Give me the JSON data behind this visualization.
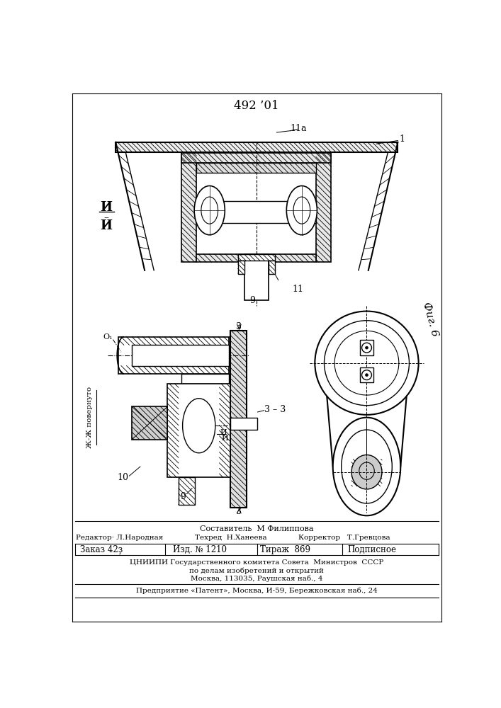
{
  "patent_number": "492 ’01",
  "fig_label": "Фиг. 6",
  "background_color": "#ffffff",
  "footer": {
    "sostavitel": "Составитель  М Филиппова",
    "redaktor": "Редактор· Л.Народная",
    "tehred": "Техред  Н.Ханеева",
    "korrektor": "Корректор   Т.Гревцова",
    "zakaz": "Заказ 42ҙ",
    "izd": "Изд. № 1210",
    "tirazh": "Тираж  869",
    "podpisnoe": "Подписное",
    "tsniip1": "ЦНИИПИ Государственного комитета Совета  Министров  СССР",
    "tsniip2": "по делам изобретений и открытий",
    "tsniip3": "Москва, 113035, Раушская наб., 4",
    "predpr": "Предприятие «Патент», Москва, И-59, Бережковская наб., 24"
  }
}
